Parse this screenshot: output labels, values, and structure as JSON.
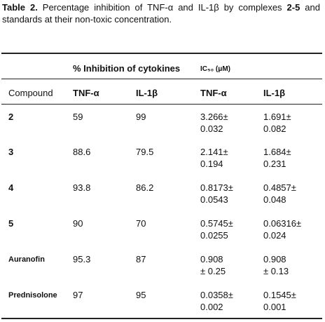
{
  "caption": {
    "label": "Table 2.",
    "text_1": " Percentage inhibition of TNF-α and IL-1β by complexes ",
    "range": "2-5",
    "text_2": " and standards at their non-toxic concentration."
  },
  "table": {
    "group_header_inhibition": "% Inhibition of cytokines",
    "group_header_ic50": "IC₅₀ (μM)",
    "columns": [
      "Compound",
      "TNF-α",
      "IL-1β",
      "TNF-α",
      "IL-1β"
    ],
    "rows": [
      {
        "compound": "2",
        "inh_tnf": "59",
        "inh_il": "99",
        "ic_tnf_1": "3.266±",
        "ic_tnf_2": "0.032",
        "ic_il_1": "1.691±",
        "ic_il_2": "0.082"
      },
      {
        "compound": "3",
        "inh_tnf": "88.6",
        "inh_il": "79.5",
        "ic_tnf_1": "2.141±",
        "ic_tnf_2": "0.194",
        "ic_il_1": "1.684±",
        "ic_il_2": "0.231"
      },
      {
        "compound": "4",
        "inh_tnf": "93.8",
        "inh_il": "86.2",
        "ic_tnf_1": "0.8173±",
        "ic_tnf_2": "0.0543",
        "ic_il_1": "0.4857±",
        "ic_il_2": "0.048"
      },
      {
        "compound": "5",
        "inh_tnf": "90",
        "inh_il": "70",
        "ic_tnf_1": "0.5745±",
        "ic_tnf_2": "0.0255",
        "ic_il_1": "0.06316±",
        "ic_il_2": "0.024"
      },
      {
        "compound": "Auranofin",
        "inh_tnf": "95.3",
        "inh_il": "87",
        "ic_tnf_1": "0.908",
        "ic_tnf_2": "± 0.25",
        "ic_il_1": "0.908",
        "ic_il_2": "± 0.13"
      },
      {
        "compound": "Prednisolone",
        "inh_tnf": "97",
        "inh_il": "95",
        "ic_tnf_1": "0.0358±",
        "ic_tnf_2": "0.002",
        "ic_il_1": "0.1545±",
        "ic_il_2": "0.001"
      }
    ]
  }
}
